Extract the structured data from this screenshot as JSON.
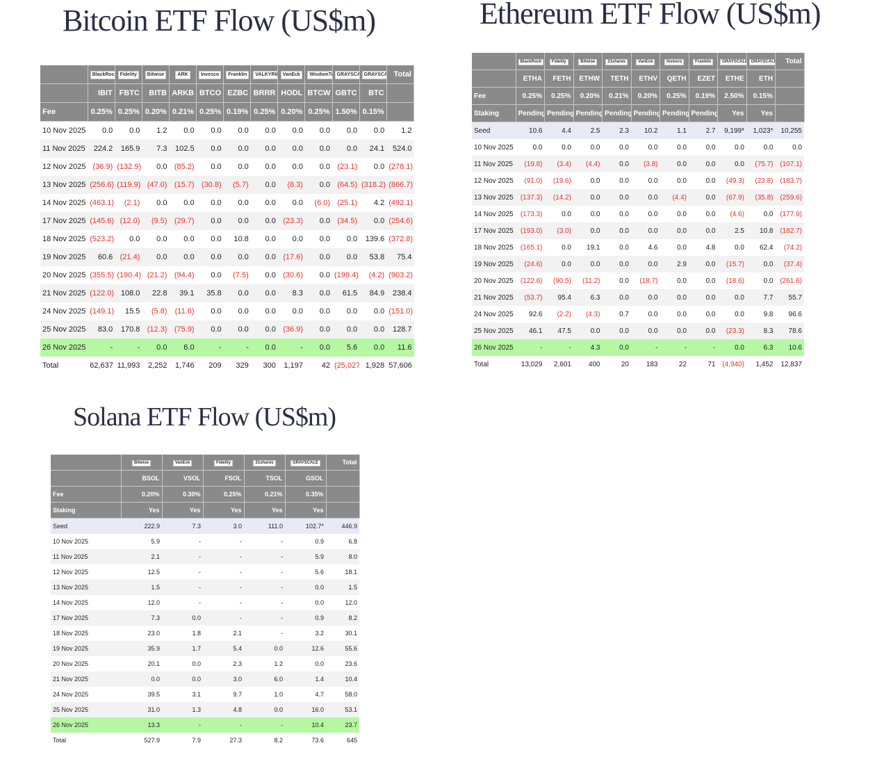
{
  "btc": {
    "title": "Bitcoin ETF Flow (US$m)",
    "issuers": [
      "BlackRock",
      "Fidelity",
      "Bitwise",
      "ARK",
      "Invesco",
      "Franklin",
      "VALKYRIE",
      "VanEck",
      "WisdomTree",
      "GRAYSCALE",
      "GRAYSCALE",
      "Total"
    ],
    "tickers": [
      "IBIT",
      "FBTC",
      "BITB",
      "ARKB",
      "BTCO",
      "EZBC",
      "BRRR",
      "HODL",
      "BTCW",
      "GBTC",
      "BTC",
      ""
    ],
    "fee_label": "Fee",
    "fees": [
      "0.25%",
      "0.25%",
      "0.20%",
      "0.21%",
      "0.25%",
      "0.19%",
      "0.25%",
      "0.20%",
      "0.25%",
      "1.50%",
      "0.15%",
      ""
    ],
    "rows": [
      {
        "date": "10 Nov 2025",
        "v": [
          "0.0",
          "0.0",
          "1.2",
          "0.0",
          "0.0",
          "0.0",
          "0.0",
          "0.0",
          "0.0",
          "0.0",
          "0.0",
          "1.2"
        ]
      },
      {
        "date": "11 Nov 2025",
        "v": [
          "224.2",
          "165.9",
          "7.3",
          "102.5",
          "0.0",
          "0.0",
          "0.0",
          "0.0",
          "0.0",
          "0.0",
          "24.1",
          "524.0"
        ]
      },
      {
        "date": "12 Nov 2025",
        "v": [
          "(36.9)",
          "(132.9)",
          "0.0",
          "(85.2)",
          "0.0",
          "0.0",
          "0.0",
          "0.0",
          "0.0",
          "(23.1)",
          "0.0",
          "(278.1)"
        ]
      },
      {
        "date": "13 Nov 2025",
        "v": [
          "(256.6)",
          "(119.9)",
          "(47.0)",
          "(15.7)",
          "(30.8)",
          "(5.7)",
          "0.0",
          "(8.3)",
          "0.0",
          "(64.5)",
          "(318.2)",
          "(866.7)"
        ]
      },
      {
        "date": "14 Nov 2025",
        "v": [
          "(463.1)",
          "(2.1)",
          "0.0",
          "0.0",
          "0.0",
          "0.0",
          "0.0",
          "0.0",
          "(6.0)",
          "(25.1)",
          "4.2",
          "(492.1)"
        ]
      },
      {
        "date": "17 Nov 2025",
        "v": [
          "(145.6)",
          "(12.0)",
          "(9.5)",
          "(29.7)",
          "0.0",
          "0.0",
          "0.0",
          "(23.3)",
          "0.0",
          "(34.5)",
          "0.0",
          "(254.6)"
        ]
      },
      {
        "date": "18 Nov 2025",
        "v": [
          "(523.2)",
          "0.0",
          "0.0",
          "0.0",
          "0.0",
          "10.8",
          "0.0",
          "0.0",
          "0.0",
          "0.0",
          "139.6",
          "(372.8)"
        ]
      },
      {
        "date": "19 Nov 2025",
        "v": [
          "60.6",
          "(21.4)",
          "0.0",
          "0.0",
          "0.0",
          "0.0",
          "0.0",
          "(17.6)",
          "0.0",
          "0.0",
          "53.8",
          "75.4"
        ]
      },
      {
        "date": "20 Nov 2025",
        "v": [
          "(355.5)",
          "(190.4)",
          "(21.2)",
          "(94.4)",
          "0.0",
          "(7.5)",
          "0.0",
          "(30.6)",
          "0.0",
          "(199.4)",
          "(4.2)",
          "(903.2)"
        ]
      },
      {
        "date": "21 Nov 2025",
        "v": [
          "(122.0)",
          "108.0",
          "22.8",
          "39.1",
          "35.8",
          "0.0",
          "0.0",
          "8.3",
          "0.0",
          "61.5",
          "84.9",
          "238.4"
        ]
      },
      {
        "date": "24 Nov 2025",
        "v": [
          "(149.1)",
          "15.5",
          "(5.8)",
          "(11.6)",
          "0.0",
          "0.0",
          "0.0",
          "0.0",
          "0.0",
          "0.0",
          "0.0",
          "(151.0)"
        ]
      },
      {
        "date": "25 Nov 2025",
        "v": [
          "83.0",
          "170.8",
          "(12.3)",
          "(75.9)",
          "0.0",
          "0.0",
          "0.0",
          "(36.9)",
          "0.0",
          "0.0",
          "0.0",
          "128.7"
        ]
      },
      {
        "date": "26 Nov 2025",
        "v": [
          "-",
          "-",
          "0.0",
          "6.0",
          "-",
          "-",
          "0.0",
          "-",
          "0.0",
          "5.6",
          "0.0",
          "11.6"
        ],
        "highlight": true
      }
    ],
    "total": {
      "label": "Total",
      "v": [
        "62,637",
        "11,993",
        "2,252",
        "1,746",
        "209",
        "329",
        "300",
        "1,197",
        "42",
        "(25,027)",
        "1,928",
        "57,606"
      ]
    }
  },
  "eth": {
    "title": "Ethereum ETF Flow (US$m)",
    "issuers": [
      "BlackRock",
      "Fidelity",
      "Bitwise",
      "21shares",
      "VanEck",
      "Invesco",
      "Franklin",
      "GRAYSCALE",
      "GRAYSCALE",
      "Total"
    ],
    "tickers": [
      "ETHA",
      "FETH",
      "ETHW",
      "TETH",
      "ETHV",
      "QETH",
      "EZET",
      "ETHE",
      "ETH",
      ""
    ],
    "fee_label": "Fee",
    "fees": [
      "0.25%",
      "0.25%",
      "0.20%",
      "0.21%",
      "0.20%",
      "0.25%",
      "0.19%",
      "2.50%",
      "0.15%",
      ""
    ],
    "staking_label": "Staking",
    "staking": [
      "Pending",
      "Pending",
      "Pending",
      "Pending",
      "Pending",
      "Pending",
      "Pending",
      "Yes",
      "Yes",
      ""
    ],
    "seed": {
      "label": "Seed",
      "v": [
        "10.6",
        "4.4",
        "2.5",
        "2.3",
        "10.2",
        "1.1",
        "2.7",
        "9,199*",
        "1,023*",
        "10,255"
      ]
    },
    "rows": [
      {
        "date": "10 Nov 2025",
        "v": [
          "0.0",
          "0.0",
          "0.0",
          "0.0",
          "0.0",
          "0.0",
          "0.0",
          "0.0",
          "0.0",
          "0.0"
        ]
      },
      {
        "date": "11 Nov 2025",
        "v": [
          "(19.8)",
          "(3.4)",
          "(4.4)",
          "0.0",
          "(3.8)",
          "0.0",
          "0.0",
          "0.0",
          "(75.7)",
          "(107.1)"
        ]
      },
      {
        "date": "12 Nov 2025",
        "v": [
          "(91.0)",
          "(19.6)",
          "0.0",
          "0.0",
          "0.0",
          "0.0",
          "0.0",
          "(49.3)",
          "(23.8)",
          "(183.7)"
        ]
      },
      {
        "date": "13 Nov 2025",
        "v": [
          "(137.3)",
          "(14.2)",
          "0.0",
          "0.0",
          "0.0",
          "(4.4)",
          "0.0",
          "(67.9)",
          "(35.8)",
          "(259.6)"
        ]
      },
      {
        "date": "14 Nov 2025",
        "v": [
          "(173.3)",
          "0.0",
          "0.0",
          "0.0",
          "0.0",
          "0.0",
          "0.0",
          "(4.6)",
          "0.0",
          "(177.9)"
        ]
      },
      {
        "date": "17 Nov 2025",
        "v": [
          "(193.0)",
          "(3.0)",
          "0.0",
          "0.0",
          "0.0",
          "0.0",
          "0.0",
          "2.5",
          "10.8",
          "(182.7)"
        ]
      },
      {
        "date": "18 Nov 2025",
        "v": [
          "(165.1)",
          "0.0",
          "19.1",
          "0.0",
          "4.6",
          "0.0",
          "4.8",
          "0.0",
          "62.4",
          "(74.2)"
        ]
      },
      {
        "date": "19 Nov 2025",
        "v": [
          "(24.6)",
          "0.0",
          "0.0",
          "0.0",
          "0.0",
          "2.9",
          "0.0",
          "(15.7)",
          "0.0",
          "(37.4)"
        ]
      },
      {
        "date": "20 Nov 2025",
        "v": [
          "(122.6)",
          "(90.5)",
          "(11.2)",
          "0.0",
          "(18.7)",
          "0.0",
          "0.0",
          "(18.6)",
          "0.0",
          "(261.6)"
        ]
      },
      {
        "date": "21 Nov 2025",
        "v": [
          "(53.7)",
          "95.4",
          "6.3",
          "0.0",
          "0.0",
          "0.0",
          "0.0",
          "0.0",
          "7.7",
          "55.7"
        ]
      },
      {
        "date": "24 Nov 2025",
        "v": [
          "92.6",
          "(2.2)",
          "(4.3)",
          "0.7",
          "0.0",
          "0.0",
          "0.0",
          "0.0",
          "9.8",
          "96.6"
        ]
      },
      {
        "date": "25 Nov 2025",
        "v": [
          "46.1",
          "47.5",
          "0.0",
          "0.0",
          "0.0",
          "0.0",
          "0.0",
          "(23.3)",
          "8.3",
          "78.6"
        ]
      },
      {
        "date": "26 Nov 2025",
        "v": [
          "-",
          "-",
          "4.3",
          "0.0",
          "-",
          "-",
          "-",
          "0.0",
          "6.3",
          "10.6"
        ],
        "highlight": true
      }
    ],
    "total": {
      "label": "Total",
      "v": [
        "13,029",
        "2,601",
        "400",
        "20",
        "183",
        "22",
        "71",
        "(4,940)",
        "1,452",
        "12,837"
      ]
    }
  },
  "sol": {
    "title": "Solana ETF Flow (US$m)",
    "issuers": [
      "Bitwise",
      "VanEck",
      "Fidelity",
      "21shares",
      "GRAYSCALE",
      "Total"
    ],
    "tickers": [
      "BSOL",
      "VSOL",
      "FSOL",
      "TSOL",
      "GSOL",
      ""
    ],
    "fee_label": "Fee",
    "fees": [
      "0.20%",
      "0.30%",
      "0.25%",
      "0.21%",
      "0.35%",
      ""
    ],
    "staking_label": "Staking",
    "staking": [
      "Yes",
      "Yes",
      "Yes",
      "Yes",
      "Yes",
      ""
    ],
    "seed": {
      "label": "Seed",
      "v": [
        "222.9",
        "7.3",
        "3.0",
        "111.0",
        "102.7*",
        "446.9"
      ]
    },
    "rows": [
      {
        "date": "10 Nov 2025",
        "v": [
          "5.9",
          "-",
          "-",
          "-",
          "0.9",
          "6.8"
        ]
      },
      {
        "date": "11 Nov 2025",
        "v": [
          "2.1",
          "-",
          "-",
          "-",
          "5.9",
          "8.0"
        ]
      },
      {
        "date": "12 Nov 2025",
        "v": [
          "12.5",
          "-",
          "-",
          "-",
          "5.6",
          "18.1"
        ]
      },
      {
        "date": "13 Nov 2025",
        "v": [
          "1.5",
          "-",
          "-",
          "-",
          "0.0",
          "1.5"
        ]
      },
      {
        "date": "14 Nov 2025",
        "v": [
          "12.0",
          "-",
          "-",
          "-",
          "0.0",
          "12.0"
        ]
      },
      {
        "date": "17 Nov 2025",
        "v": [
          "7.3",
          "0.0",
          "-",
          "-",
          "0.9",
          "8.2"
        ]
      },
      {
        "date": "18 Nov 2025",
        "v": [
          "23.0",
          "1.8",
          "2.1",
          "-",
          "3.2",
          "30.1"
        ]
      },
      {
        "date": "19 Nov 2025",
        "v": [
          "35.9",
          "1.7",
          "5.4",
          "0.0",
          "12.6",
          "55.6"
        ]
      },
      {
        "date": "20 Nov 2025",
        "v": [
          "20.1",
          "0.0",
          "2.3",
          "1.2",
          "0.0",
          "23.6"
        ]
      },
      {
        "date": "21 Nov 2025",
        "v": [
          "0.0",
          "0.0",
          "3.0",
          "6.0",
          "1.4",
          "10.4"
        ]
      },
      {
        "date": "24 Nov 2025",
        "v": [
          "39.5",
          "3.1",
          "9.7",
          "1.0",
          "4.7",
          "58.0"
        ]
      },
      {
        "date": "25 Nov 2025",
        "v": [
          "31.0",
          "1.3",
          "4.8",
          "0.0",
          "16.0",
          "53.1"
        ]
      },
      {
        "date": "26 Nov 2025",
        "v": [
          "13.3",
          "-",
          "-",
          "-",
          "10.4",
          "23.7"
        ],
        "highlight": true
      }
    ],
    "total": {
      "label": "Total",
      "v": [
        "527.9",
        "7.9",
        "27.3",
        "8.2",
        "73.6",
        "645"
      ]
    }
  }
}
